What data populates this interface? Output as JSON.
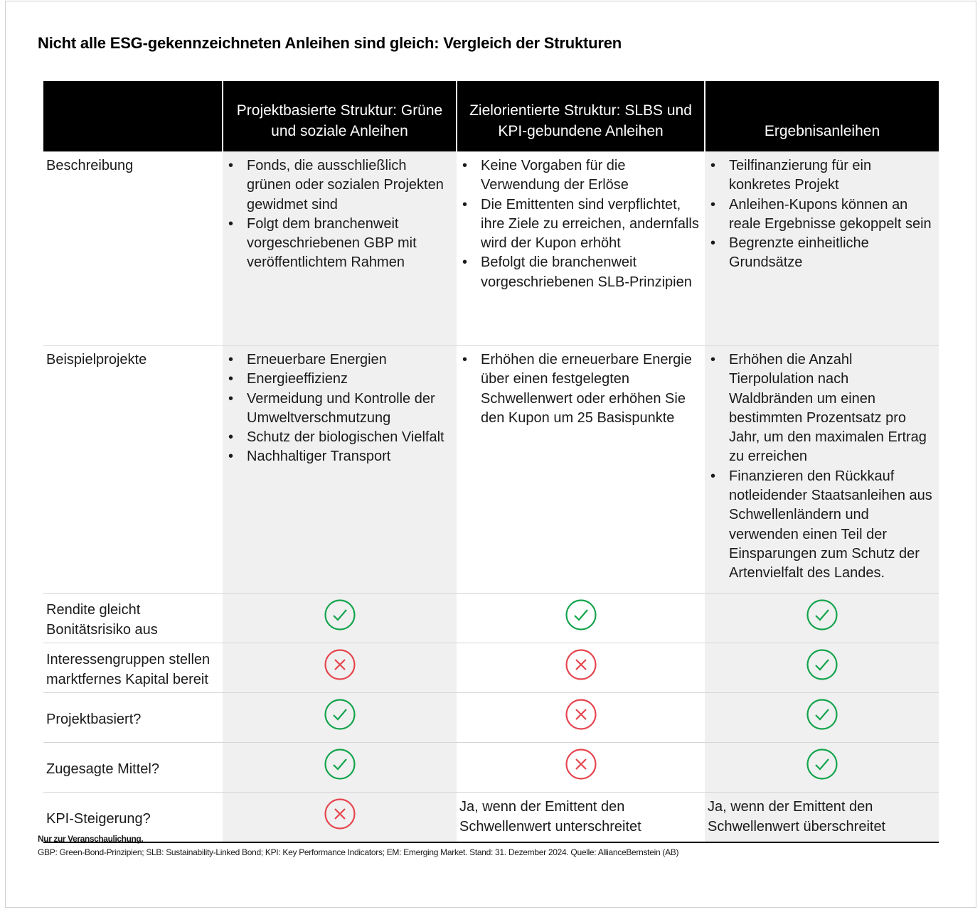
{
  "title": "Nicht alle ESG-gekennzeichneten Anleihen sind gleich: Vergleich der Strukturen",
  "headers": [
    "",
    "Projektbasierte Struktur: Grüne und soziale Anleihen",
    "Zielorientierte Struktur: SLBS und KPI-gebundene Anleihen",
    "Ergebnisanleihen"
  ],
  "rows": {
    "beschreibung": {
      "label": "Beschreibung",
      "c1": [
        "Fonds, die ausschließlich grünen oder sozialen Projekten gewidmet sind",
        "Folgt dem branchenweit vorgeschriebenen GBP mit veröffentlichtem Rahmen"
      ],
      "c2": [
        "Keine Vorgaben für die Verwendung der Erlöse",
        "Die Emittenten sind verpflichtet, ihre Ziele zu erreichen, andernfalls wird der Kupon erhöht",
        "Befolgt die branchenweit vorgeschriebenen SLB-Prinzipien"
      ],
      "c3": [
        "Teilfinanzierung für ein konkretes Projekt",
        "Anleihen-Kupons können an reale Ergebnisse gekoppelt sein",
        "Begrenzte einheitliche Grundsätze"
      ]
    },
    "beispiel": {
      "label": "Beispielprojekte",
      "c1": [
        "Erneuerbare Energien",
        "Energieeffizienz",
        "Vermeidung und Kontrolle der Umweltverschmutzung",
        "Schutz der biologischen Vielfalt",
        "Nachhaltiger Transport"
      ],
      "c2": [
        "Erhöhen die erneuerbare Energie über einen festgelegten Schwellenwert oder erhöhen Sie den Kupon um 25 Basispunkte"
      ],
      "c3": [
        "Erhöhen die Anzahl Tierpolulation nach Waldbränden um einen bestimmten Prozentsatz pro Jahr, um den maximalen Ertrag zu erreichen",
        "Finanzieren den Rückkauf notleidender Staatsanleihen aus Schwellenländern und verwenden einen Teil der Einsparungen zum Schutz der Artenvielfalt des Landes."
      ]
    },
    "rendite": {
      "label": "Rendite gleicht Bonitätsrisiko aus",
      "values": [
        "check",
        "check",
        "check"
      ]
    },
    "interessen": {
      "label": "Interessengruppen stellen marktfernes Kapital bereit",
      "values": [
        "cross",
        "cross",
        "check"
      ]
    },
    "projekt": {
      "label": "Projektbasiert?",
      "values": [
        "check",
        "cross",
        "check"
      ]
    },
    "mittel": {
      "label": "Zugesagte Mittel?",
      "values": [
        "check",
        "cross",
        "check"
      ]
    },
    "kpi": {
      "label": "KPI-Steigerung?",
      "values": [
        "cross",
        "Ja, wenn der Emittent den Schwellenwert unterschreitet",
        "Ja, wenn der Emittent den Schwellenwert überschreitet"
      ]
    }
  },
  "footnote_title": "Nur zur Veranschaulichung.",
  "footnote": "GBP: Green-Bond-Prinzipien; SLB: Sustainability-Linked Bond; KPI: Key Performance Indicators; EM: Emerging Market. Stand: 31. Dezember 2024. Quelle: AllianceBernstein (AB)",
  "colors": {
    "check": "#14a44d",
    "cross": "#e5454f",
    "header_bg": "#000000",
    "shade": "#f0f0f0"
  }
}
